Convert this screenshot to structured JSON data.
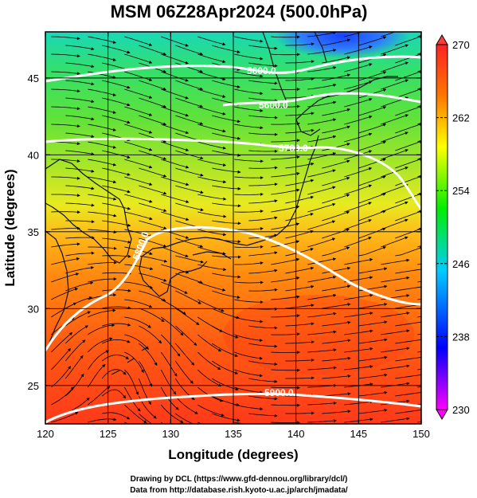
{
  "title": "MSM 06Z28Apr2024 (500.0hPa)",
  "xlabel": "Longitude (degrees)",
  "ylabel": "Latitude  (degrees)",
  "credits": [
    "Drawing by DCL (https://www.gfd-dennou.org/library/dcl/)",
    "Data from http://database.rish.kyoto-u.ac.jp/arch/jmadata/"
  ],
  "map": {
    "lon_range": [
      120,
      150
    ],
    "lat_range": [
      22.5,
      48
    ],
    "lon_ticks": [
      "120",
      "125",
      "130",
      "135",
      "140",
      "145",
      "150"
    ],
    "lat_ticks": [
      "25",
      "30",
      "35",
      "40",
      "45"
    ],
    "grid": true
  },
  "colorbar": {
    "min": 230,
    "max": 270,
    "ticks": [
      "230",
      "238",
      "246",
      "254",
      "262",
      "270"
    ],
    "colors": [
      "#ff00ff",
      "#0000ff",
      "#00ccff",
      "#00ee00",
      "#ffff00",
      "#ff7700",
      "#ff2222"
    ]
  },
  "contours": [
    {
      "label": "5600.0"
    },
    {
      "label": "5600.0"
    },
    {
      "label": "5700.0"
    },
    {
      "label": "5800.0"
    },
    {
      "label": "5900.0"
    }
  ],
  "field": {
    "variable": "temperature",
    "units": "K",
    "overlay": "wind streamlines"
  }
}
